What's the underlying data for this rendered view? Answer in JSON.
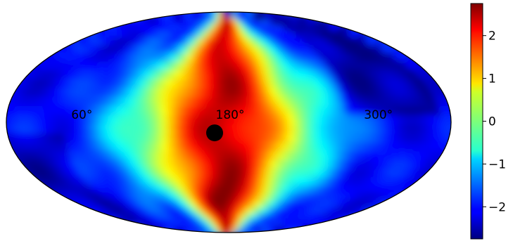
{
  "chart_data": {
    "type": "heatmap",
    "projection": "mollweide",
    "title": "",
    "longitude_labels": [
      {
        "lon": 60,
        "text": "60°"
      },
      {
        "lon": 180,
        "text": "180°"
      },
      {
        "lon": 300,
        "text": "300°"
      }
    ],
    "colorbar": {
      "colormap": "jet",
      "vmin": -2.75,
      "vmax": 2.75,
      "ticks": [
        {
          "value": 2,
          "text": "2"
        },
        {
          "value": 1,
          "text": "1"
        },
        {
          "value": 0,
          "text": "0"
        },
        {
          "value": -1,
          "text": "−1"
        },
        {
          "value": -2,
          "text": "−2"
        }
      ]
    },
    "marker": {
      "lon": 180,
      "lat": -7,
      "color": "#000000"
    },
    "field_description_blobs": [
      {
        "lon": 180,
        "lat": 40,
        "value": 2.2
      },
      {
        "lon": 180,
        "lat": 0,
        "value": 2.3
      },
      {
        "lon": 170,
        "lat": -50,
        "value": 2.7
      },
      {
        "lon": 150,
        "lat": 5,
        "value": 1.6
      },
      {
        "lon": 210,
        "lat": 5,
        "value": 1.5
      },
      {
        "lon": 60,
        "lat": 0,
        "value": -2.0
      },
      {
        "lon": 300,
        "lat": 0,
        "value": -1.9
      },
      {
        "lon": 330,
        "lat": 40,
        "value": -2.5
      },
      {
        "lon": 20,
        "lat": -10,
        "value": -2.3
      }
    ]
  }
}
